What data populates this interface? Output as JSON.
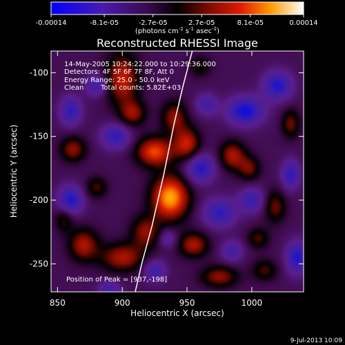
{
  "chart_data": {
    "type": "heatmap",
    "title": "Reconstructed RHESSI Image",
    "xlabel": "Heliocentric X (arcsec)",
    "ylabel": "Heliocentric Y (arcsec)",
    "xlim": [
      845,
      1040
    ],
    "ylim": [
      -272,
      -83
    ],
    "x_ticks": [
      850,
      900,
      950,
      1000
    ],
    "x_tick_labels": [
      "850",
      "900",
      "950",
      "1000"
    ],
    "y_ticks": [
      -100,
      -150,
      -200,
      -250
    ],
    "y_tick_labels": [
      "-100",
      "-150",
      "-200",
      "-250"
    ],
    "colorbar": {
      "range": [
        -0.00014,
        0.00014
      ],
      "tick_values": [
        -0.00014,
        -8.1e-05,
        -2.7e-05,
        2.7e-05,
        8.1e-05,
        0.00014
      ],
      "tick_labels": [
        "-0.00014",
        "-8.1e-05",
        "-2.7e-05",
        "2.7e-05",
        "8.1e-05",
        "0.00014"
      ],
      "label_main": "(photons cm",
      "label_exp1": "-2",
      "label_mid": " s",
      "label_exp2": "-1",
      "label_end": " asec",
      "label_exp3": "-2",
      "label_close": ")",
      "colormap": "rhessi-blue-purple-red-yellow-white"
    },
    "annotations": {
      "time_range": "14-May-2005 10:24:22.000 to 10:29:36.000",
      "detectors": "Detectors: 4F 5F 6F 7F 8F, Att 0",
      "energy_range": "Energy Range: 25.0 - 50.0 keV",
      "clean": "Clean",
      "total_counts": "Total counts: 5.82E+03",
      "peak": "Position of Peak = [937,-198]"
    },
    "peak": {
      "x": 937,
      "y": -198
    },
    "limb_curve": [
      [
        910,
        -272
      ],
      [
        915,
        -250
      ],
      [
        923,
        -220
      ],
      [
        932,
        -180
      ],
      [
        940,
        -140
      ],
      [
        947,
        -110
      ],
      [
        954,
        -83
      ]
    ],
    "sources": [
      {
        "x": 937,
        "y": -198,
        "value": 0.00014,
        "sx": 10,
        "sy": 12
      },
      {
        "x": 925,
        "y": -162,
        "value": 0.00011,
        "sx": 10,
        "sy": 8
      },
      {
        "x": 950,
        "y": -156,
        "value": 9e-05,
        "sx": 7,
        "sy": 9
      },
      {
        "x": 900,
        "y": -105,
        "value": 9e-05,
        "sx": 9,
        "sy": 14
      },
      {
        "x": 908,
        "y": -132,
        "value": 7e-05,
        "sx": 7,
        "sy": 7
      },
      {
        "x": 940,
        "y": -135,
        "value": 7e-05,
        "sx": 7,
        "sy": 9
      },
      {
        "x": 985,
        "y": -165,
        "value": 8e-05,
        "sx": 7,
        "sy": 8
      },
      {
        "x": 862,
        "y": -160,
        "value": 7e-05,
        "sx": 7,
        "sy": 7
      },
      {
        "x": 870,
        "y": -235,
        "value": 8e-05,
        "sx": 8,
        "sy": 9
      },
      {
        "x": 900,
        "y": -245,
        "value": 8e-05,
        "sx": 12,
        "sy": 8
      },
      {
        "x": 918,
        "y": -225,
        "value": 7e-05,
        "sx": 8,
        "sy": 9
      },
      {
        "x": 955,
        "y": -235,
        "value": 8e-05,
        "sx": 8,
        "sy": 7
      },
      {
        "x": 975,
        "y": -260,
        "value": 7e-05,
        "sx": 10,
        "sy": 6
      },
      {
        "x": 998,
        "y": -175,
        "value": 6e-05,
        "sx": 6,
        "sy": 7
      },
      {
        "x": 1018,
        "y": -205,
        "value": 6e-05,
        "sx": 6,
        "sy": 9
      },
      {
        "x": 1005,
        "y": -230,
        "value": 5e-05,
        "sx": 6,
        "sy": 6
      },
      {
        "x": 1030,
        "y": -140,
        "value": 6e-05,
        "sx": 5,
        "sy": 8
      },
      {
        "x": 880,
        "y": -190,
        "value": 5e-05,
        "sx": 6,
        "sy": 6
      },
      {
        "x": 960,
        "y": -95,
        "value": 4e-05,
        "sx": 6,
        "sy": 6
      },
      {
        "x": 1010,
        "y": -255,
        "value": 5e-05,
        "sx": 7,
        "sy": 6
      },
      {
        "x": 855,
        "y": -215,
        "value": 5e-05,
        "sx": 5,
        "sy": 7
      },
      {
        "x": 895,
        "y": -150,
        "value": -8e-05,
        "sx": 8,
        "sy": 7
      },
      {
        "x": 960,
        "y": -175,
        "value": -9e-05,
        "sx": 8,
        "sy": 8
      },
      {
        "x": 995,
        "y": -130,
        "value": -0.0001,
        "sx": 10,
        "sy": 8
      },
      {
        "x": 1020,
        "y": -110,
        "value": -9e-05,
        "sx": 8,
        "sy": 8
      },
      {
        "x": 860,
        "y": -200,
        "value": -9e-05,
        "sx": 7,
        "sy": 8
      },
      {
        "x": 860,
        "y": -130,
        "value": -8e-05,
        "sx": 6,
        "sy": 8
      },
      {
        "x": 975,
        "y": -210,
        "value": -8e-05,
        "sx": 9,
        "sy": 8
      },
      {
        "x": 1000,
        "y": -200,
        "value": -7e-05,
        "sx": 7,
        "sy": 7
      },
      {
        "x": 925,
        "y": -255,
        "value": -7e-05,
        "sx": 6,
        "sy": 6
      },
      {
        "x": 1035,
        "y": -245,
        "value": -9e-05,
        "sx": 6,
        "sy": 9
      },
      {
        "x": 880,
        "y": -110,
        "value": -7e-05,
        "sx": 6,
        "sy": 6
      },
      {
        "x": 1030,
        "y": -180,
        "value": -8e-05,
        "sx": 5,
        "sy": 8
      },
      {
        "x": 965,
        "y": -125,
        "value": -6e-05,
        "sx": 6,
        "sy": 6
      },
      {
        "x": 985,
        "y": -240,
        "value": -6e-05,
        "sx": 6,
        "sy": 6
      },
      {
        "x": 890,
        "y": -270,
        "value": -6e-05,
        "sx": 6,
        "sy": 5
      },
      {
        "x": 935,
        "y": -230,
        "value": -5e-05,
        "sx": 5,
        "sy": 5
      }
    ]
  },
  "footer": {
    "timestamp": "9-Jul-2013 10:09"
  }
}
